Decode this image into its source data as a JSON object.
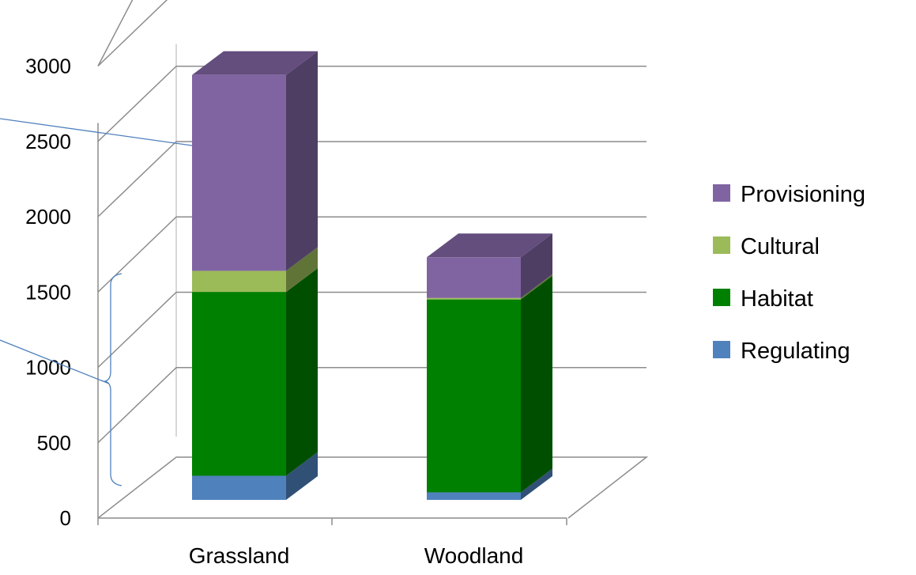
{
  "chart_data": {
    "type": "bar",
    "stacked": true,
    "three_d": true,
    "categories": [
      "Grassland",
      "Woodland"
    ],
    "series": [
      {
        "name": "Regulating",
        "values": [
          160,
          50
        ],
        "color": "#4F81BD"
      },
      {
        "name": "Habitat",
        "values": [
          1220,
          1280
        ],
        "color": "#008000"
      },
      {
        "name": "Cultural",
        "values": [
          140,
          10
        ],
        "color": "#9BBB59"
      },
      {
        "name": "Provisioning",
        "values": [
          1300,
          270
        ],
        "color": "#8064A2"
      }
    ],
    "y_ticks": [
      "0",
      "500",
      "1000",
      "1500",
      "2000",
      "2500",
      "3000"
    ],
    "ylim": [
      0,
      3000
    ],
    "grid": true,
    "legend_position": "right",
    "legend_order": [
      "Provisioning",
      "Cultural",
      "Habitat",
      "Regulating"
    ]
  }
}
